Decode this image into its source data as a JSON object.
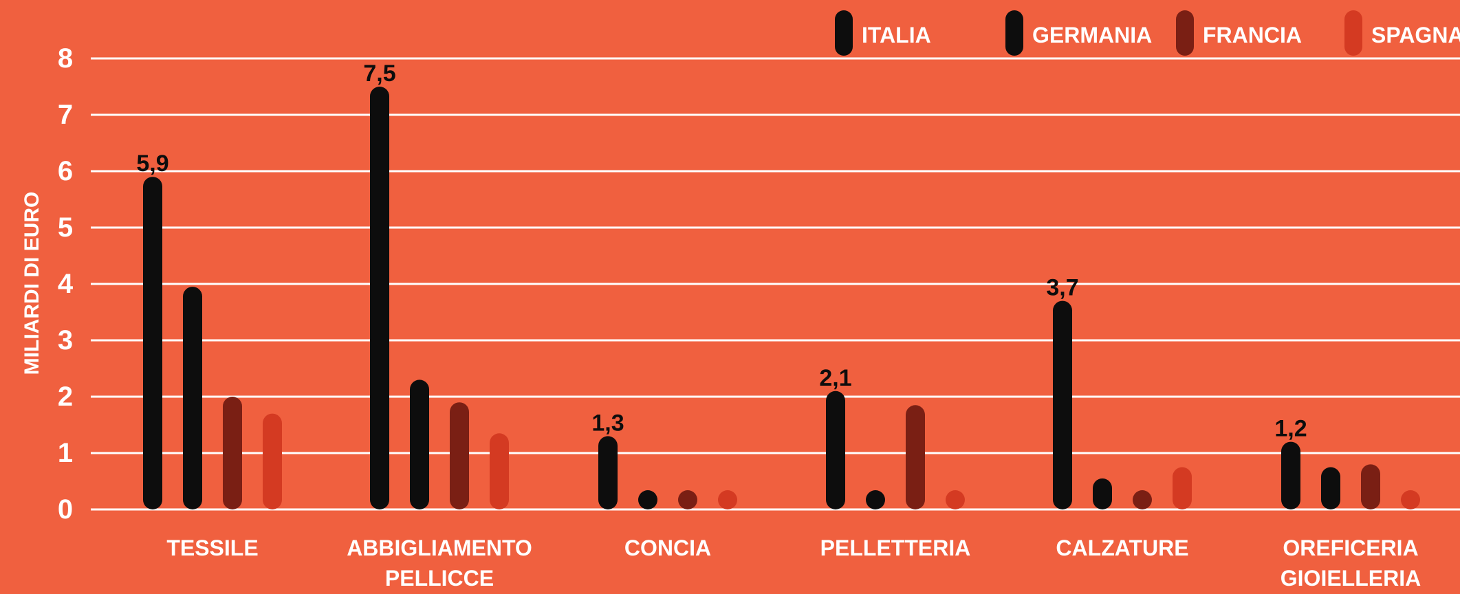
{
  "chart_data": {
    "type": "bar",
    "ylabel": "MILIARDI DI EURO",
    "ylim": [
      0,
      8
    ],
    "yticks": [
      "0",
      "1",
      "2",
      "3",
      "4",
      "5",
      "6",
      "7",
      "8"
    ],
    "grid": true,
    "legend_position": "top-right",
    "categories": [
      [
        "TESSILE"
      ],
      [
        "ABBIGLIAMENTO",
        "PELLICCE"
      ],
      [
        "CONCIA"
      ],
      [
        "PELLETTERIA"
      ],
      [
        "CALZATURE"
      ],
      [
        "OREFICERIA",
        "GIOIELLERIA"
      ]
    ],
    "series": [
      {
        "name": "ITALIA",
        "color": "#0d0d0d",
        "values": [
          5.9,
          7.5,
          1.3,
          2.1,
          3.7,
          1.2
        ],
        "labels": [
          "5,9",
          "7,5",
          "1,3",
          "2,1",
          "3,7",
          "1,2"
        ]
      },
      {
        "name": "GERMANIA",
        "color": "#0d0d0d",
        "values": [
          3.95,
          2.3,
          0.3,
          0.3,
          0.55,
          0.75
        ]
      },
      {
        "name": "FRANCIA",
        "color": "#7a1f14",
        "values": [
          2.0,
          1.9,
          0.25,
          1.85,
          0.3,
          0.8
        ]
      },
      {
        "name": "SPAGNA",
        "color": "#d43a22",
        "values": [
          1.7,
          1.35,
          0.25,
          0.2,
          0.75,
          0.3
        ]
      }
    ]
  },
  "colors": {
    "background": "#f0603f",
    "grid": "#ffffff",
    "text_light": "#ffffff",
    "text_dark": "#0d0d0d"
  }
}
